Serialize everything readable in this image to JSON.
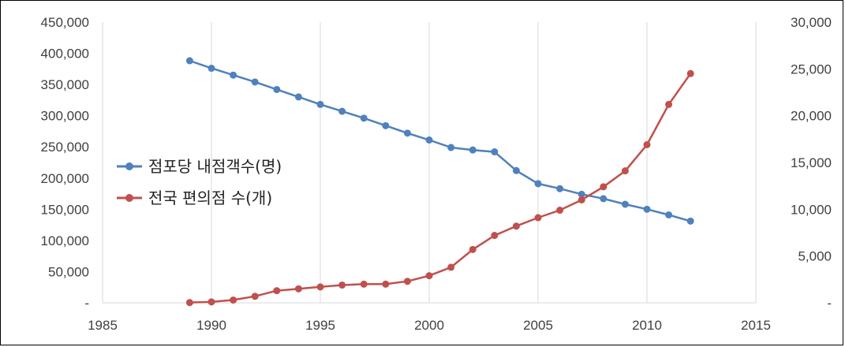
{
  "chart_data": {
    "type": "line",
    "title": "",
    "xlabel": "",
    "ylabel": "",
    "y2label": "",
    "x_ticks": [
      1985,
      1990,
      1995,
      2000,
      2005,
      2010,
      2015
    ],
    "xlim": [
      1985,
      2015
    ],
    "y_left_ticks": [
      "-",
      "50,000",
      "100,000",
      "150,000",
      "200,000",
      "250,000",
      "300,000",
      "350,000",
      "400,000",
      "450,000"
    ],
    "ylim_left": [
      0,
      450000
    ],
    "y_right_ticks": [
      "-",
      "5,000",
      "10,000",
      "15,000",
      "20,000",
      "25,000",
      "30,000"
    ],
    "ylim_right": [
      0,
      30000
    ],
    "grid": "vertical-only",
    "legend_position": "center-left",
    "series": [
      {
        "name": "점포당 내점객수(명)",
        "color": "#4f81bd",
        "axis": "left",
        "x": [
          1989,
          1990,
          1991,
          1992,
          1993,
          1994,
          1995,
          1996,
          1997,
          1998,
          1999,
          2000,
          2001,
          2002,
          2003,
          2004,
          2005,
          2006,
          2007,
          2008,
          2009,
          2010,
          2011,
          2012
        ],
        "values": [
          388000,
          376000,
          365000,
          354000,
          342000,
          330000,
          318000,
          307000,
          296000,
          284000,
          272000,
          261000,
          249000,
          245000,
          242000,
          212000,
          191000,
          183000,
          174000,
          167000,
          158000,
          150000,
          141000,
          131000
        ]
      },
      {
        "name": "전국 편의점 수(개)",
        "color": "#c0504d",
        "axis": "right",
        "x": [
          1989,
          1990,
          1991,
          1992,
          1993,
          1994,
          1995,
          1996,
          1997,
          1998,
          1999,
          2000,
          2001,
          2002,
          2003,
          2004,
          2005,
          2006,
          2007,
          2008,
          2009,
          2010,
          2011,
          2012
        ],
        "values": [
          30,
          100,
          300,
          700,
          1300,
          1500,
          1700,
          1900,
          2000,
          2000,
          2300,
          2900,
          3800,
          5700,
          7200,
          8200,
          9100,
          9900,
          11000,
          12400,
          14100,
          16900,
          21200,
          24500
        ]
      }
    ]
  }
}
